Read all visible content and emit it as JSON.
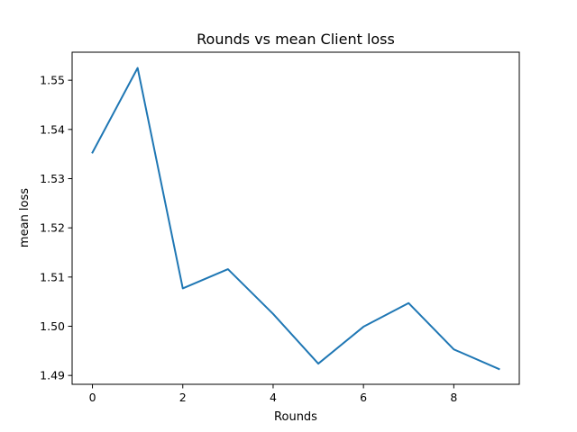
{
  "chart_data": {
    "type": "line",
    "title": "Rounds vs mean Client loss",
    "xlabel": "Rounds",
    "ylabel": "mean loss",
    "xlim": [
      -0.45,
      9.45
    ],
    "ylim": [
      1.4882,
      1.5557
    ],
    "x_ticks": [
      0,
      2,
      4,
      6,
      8
    ],
    "x_tick_labels": [
      "0",
      "2",
      "4",
      "6",
      "8"
    ],
    "y_ticks": [
      1.49,
      1.5,
      1.51,
      1.52,
      1.53,
      1.54,
      1.55
    ],
    "y_tick_labels": [
      "1.49",
      "1.50",
      "1.51",
      "1.52",
      "1.53",
      "1.54",
      "1.55"
    ],
    "grid": false,
    "series": [
      {
        "color": "#1f77b4",
        "x": [
          0,
          1,
          2,
          3,
          4,
          5,
          6,
          7,
          8,
          9
        ],
        "y": [
          1.5353,
          1.5525,
          1.5077,
          1.5116,
          1.5025,
          1.4924,
          1.4999,
          1.5047,
          1.4953,
          1.4913
        ]
      }
    ]
  }
}
